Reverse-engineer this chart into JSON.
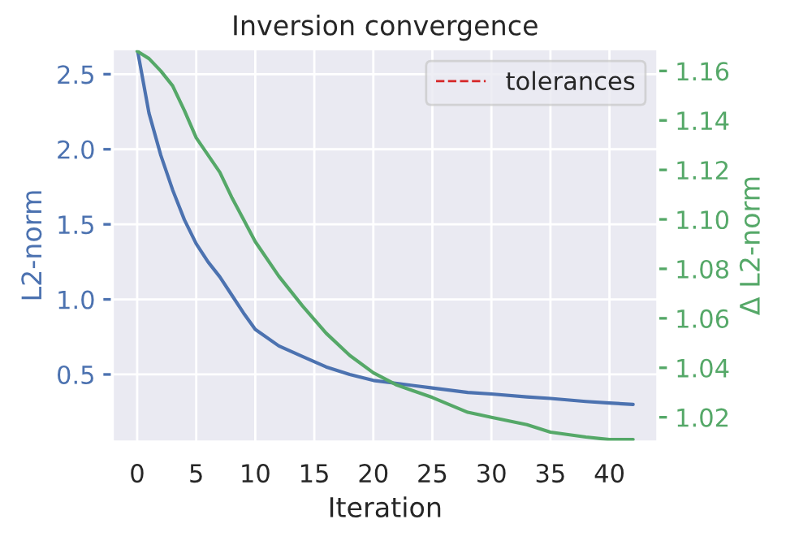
{
  "chart_data": {
    "type": "line",
    "title": "Inversion convergence",
    "xlabel": "Iteration",
    "ylabel": "L2-norm",
    "y2label": "Δ L2-norm",
    "x": [
      0,
      1,
      2,
      3,
      4,
      5,
      6,
      7,
      8,
      9,
      10,
      12,
      14,
      16,
      18,
      20,
      22,
      25,
      28,
      30,
      33,
      35,
      38,
      40,
      42
    ],
    "series": [
      {
        "color": "#4c72b0",
        "values": [
          2.67,
          2.24,
          1.96,
          1.73,
          1.53,
          1.37,
          1.25,
          1.15,
          1.03,
          0.91,
          0.8,
          0.69,
          0.62,
          0.55,
          0.5,
          0.46,
          0.44,
          0.41,
          0.38,
          0.37,
          0.35,
          0.34,
          0.32,
          0.31,
          0.3
        ]
      },
      {
        "color": "#55a868",
        "axis": "y2",
        "values": [
          1.168,
          1.165,
          1.16,
          1.154,
          1.144,
          1.133,
          1.126,
          1.119,
          1.109,
          1.1,
          1.091,
          1.077,
          1.065,
          1.054,
          1.045,
          1.038,
          1.033,
          1.028,
          1.022,
          1.02,
          1.017,
          1.014,
          1.012,
          1.011,
          1.011
        ]
      },
      {
        "name": "tolerances",
        "color": "#d62728",
        "line_style": "dashed",
        "values": [
          null,
          null,
          null,
          null,
          null,
          null,
          null,
          null,
          null,
          null,
          null,
          null,
          null,
          null,
          null,
          null,
          null,
          null,
          null,
          null,
          null,
          null,
          null,
          null,
          null
        ]
      }
    ],
    "xlim": [
      -2.1,
      44.1
    ],
    "xticks": [
      0,
      5,
      10,
      15,
      20,
      25,
      30,
      35,
      40
    ],
    "ylim": [
      0.05,
      2.67
    ],
    "yticks": [
      0.5,
      {
        "value": 1,
        "label": "1.0"
      },
      1.5,
      {
        "value": 2,
        "label": "2.0"
      },
      2.5
    ],
    "y2lim": [
      1.01,
      1.169
    ],
    "y2ticks": [
      1.02,
      1.04,
      1.06,
      1.08,
      {
        "value": 1.1,
        "label": "1.10"
      },
      1.12,
      1.14,
      1.16
    ],
    "grid": true,
    "legend": "top right"
  }
}
